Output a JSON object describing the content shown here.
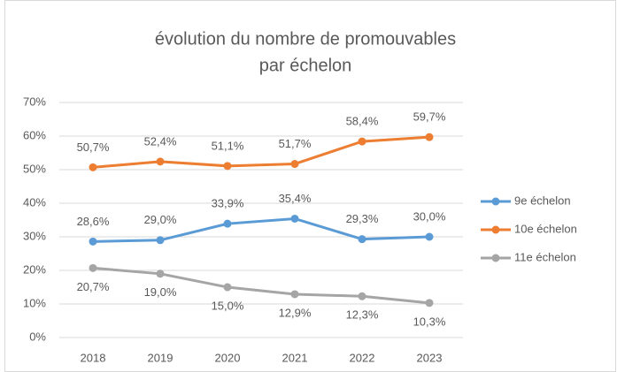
{
  "chart_data": {
    "type": "line",
    "title": [
      "évolution du nombre de promouvables",
      "par échelon"
    ],
    "categories": [
      "2018",
      "2019",
      "2020",
      "2021",
      "2022",
      "2023"
    ],
    "series": [
      {
        "name": "9e échelon",
        "color": "#5b9bd5",
        "label_position": "above",
        "values": [
          28.6,
          29.0,
          33.9,
          35.4,
          29.3,
          30.0
        ],
        "value_labels": [
          "28,6%",
          "29,0%",
          "33,9%",
          "35,4%",
          "29,3%",
          "30,0%"
        ]
      },
      {
        "name": "10e échelon",
        "color": "#ed7d31",
        "label_position": "above",
        "values": [
          50.7,
          52.4,
          51.1,
          51.7,
          58.4,
          59.7
        ],
        "value_labels": [
          "50,7%",
          "52,4%",
          "51,1%",
          "51,7%",
          "58,4%",
          "59,7%"
        ]
      },
      {
        "name": "11e échelon",
        "color": "#a5a5a5",
        "label_position": "below",
        "values": [
          20.7,
          19.0,
          15.0,
          12.9,
          12.3,
          10.3
        ],
        "value_labels": [
          "20,7%",
          "19,0%",
          "15,0%",
          "12,9%",
          "12,3%",
          "10,3%"
        ]
      }
    ],
    "ylim": [
      0,
      70
    ],
    "yticks": [
      {
        "value": 0,
        "label": "0%"
      },
      {
        "value": 10,
        "label": "10%"
      },
      {
        "value": 20,
        "label": "20%"
      },
      {
        "value": 30,
        "label": "30%"
      },
      {
        "value": 40,
        "label": "40%"
      },
      {
        "value": 50,
        "label": "50%"
      },
      {
        "value": 60,
        "label": "60%"
      },
      {
        "value": 70,
        "label": "70%"
      }
    ],
    "grid": true,
    "legend": "right"
  }
}
